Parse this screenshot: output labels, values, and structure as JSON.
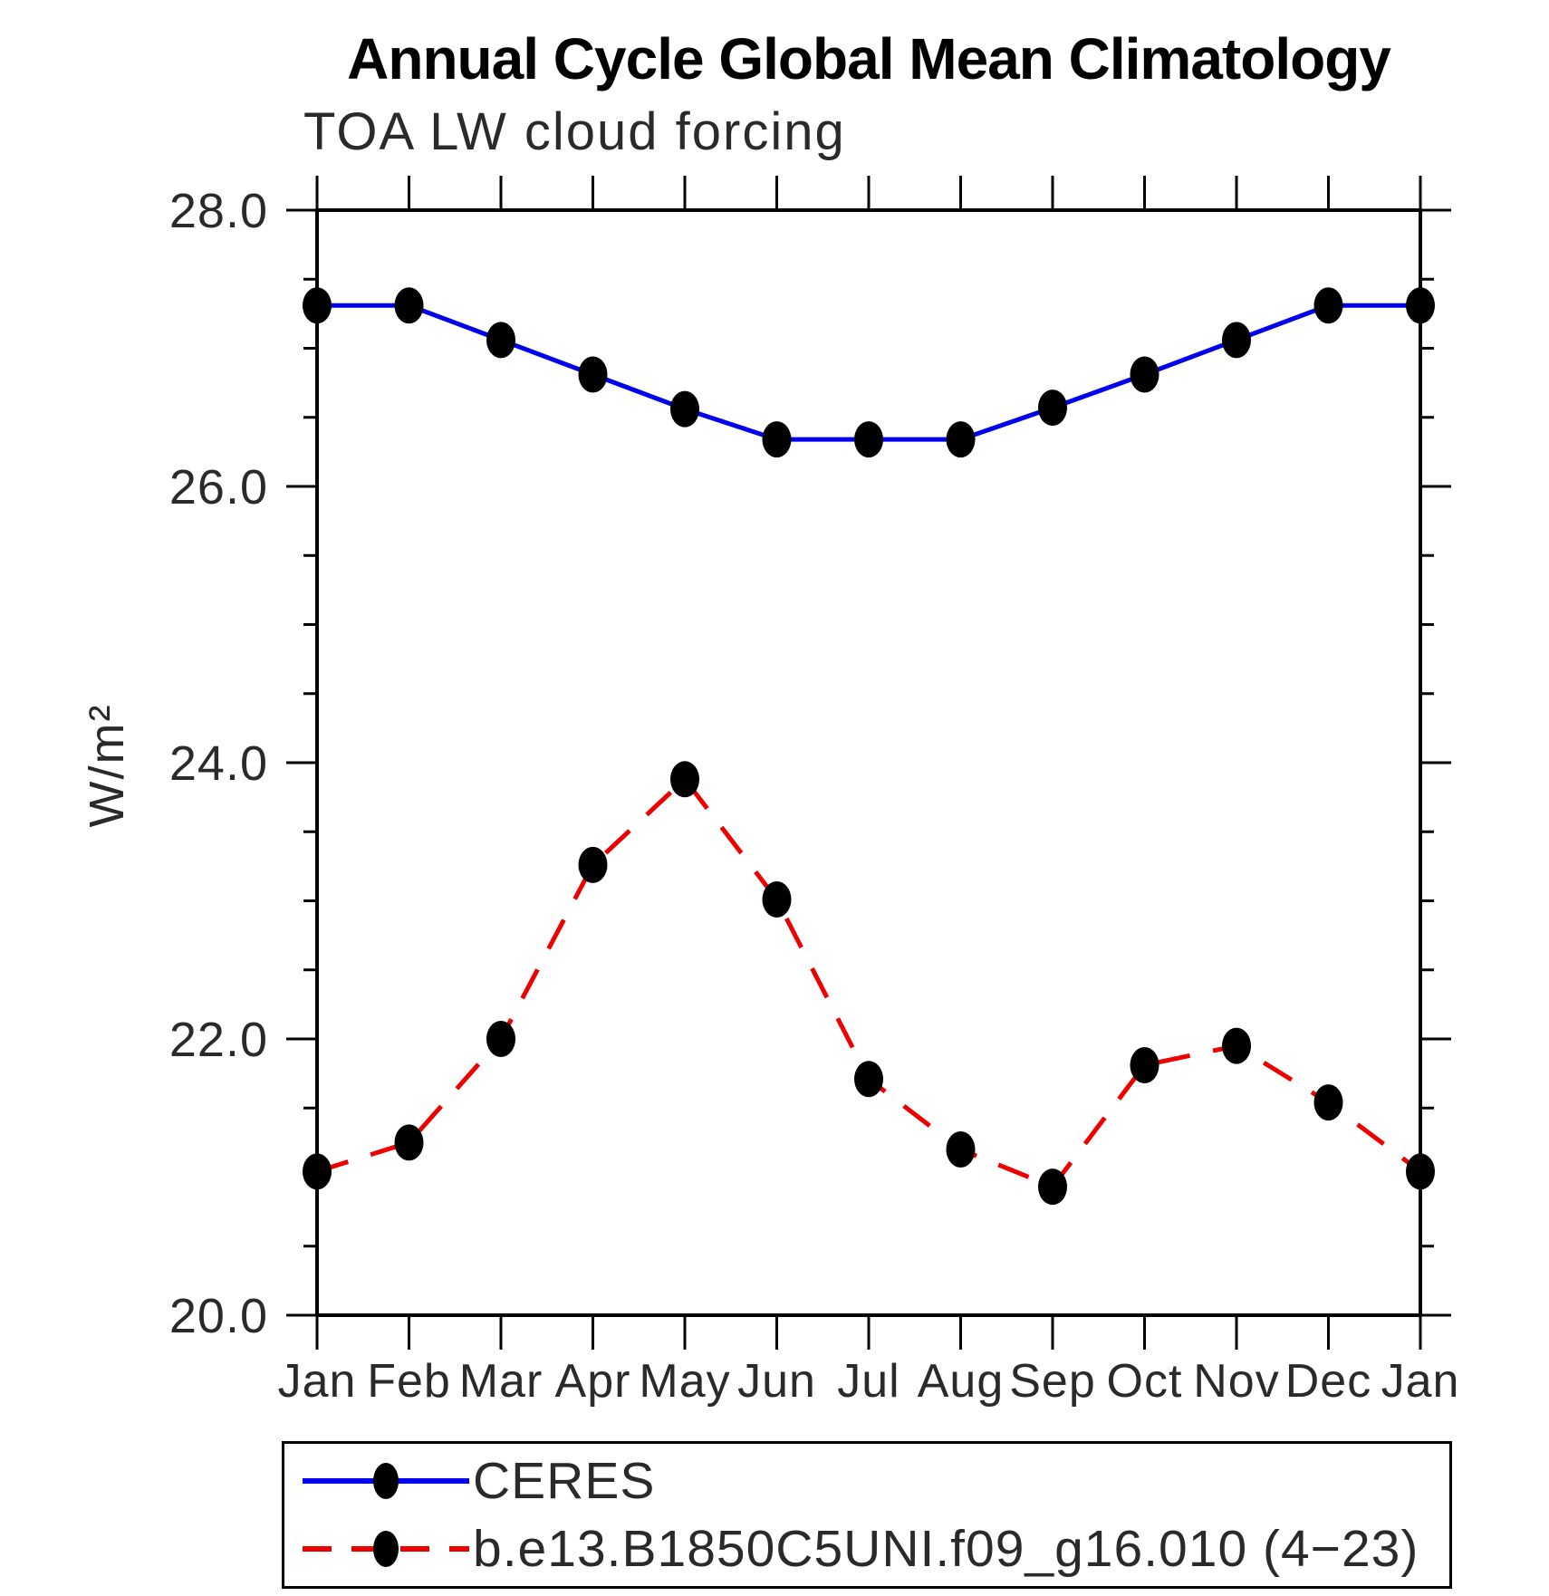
{
  "chart_data": {
    "type": "line",
    "title": "Annual Cycle Global Mean Climatology",
    "subtitle": "TOA LW cloud forcing",
    "ylabel": "W/m²",
    "categories": [
      "Jan",
      "Feb",
      "Mar",
      "Apr",
      "May",
      "Jun",
      "Jul",
      "Aug",
      "Sep",
      "Oct",
      "Nov",
      "Dec",
      "Jan"
    ],
    "series": [
      {
        "name": "CERES",
        "color": "#0000ee",
        "style": "solid",
        "marker": "filled-black-dot",
        "values": [
          27.31,
          27.31,
          27.06,
          26.81,
          26.56,
          26.34,
          26.34,
          26.34,
          26.57,
          26.81,
          27.06,
          27.31,
          27.31
        ]
      },
      {
        "name": "b.e13.B1850C5UNI.f09_g16.010 (4−23)",
        "color": "#ee0000",
        "style": "dashed",
        "marker": "filled-black-dot",
        "values": [
          21.04,
          21.25,
          22.0,
          23.26,
          23.88,
          23.01,
          21.71,
          21.2,
          20.93,
          21.81,
          21.95,
          21.54,
          21.04
        ]
      }
    ],
    "ylim": [
      20.0,
      28.0
    ],
    "yticks": [
      {
        "value": 20.0,
        "label": "20.0"
      },
      {
        "value": 22.0,
        "label": "22.0"
      },
      {
        "value": 24.0,
        "label": "24.0"
      },
      {
        "value": 26.0,
        "label": "26.0"
      },
      {
        "value": 28.0,
        "label": "28.0"
      }
    ],
    "yminor_step": 0.5,
    "grid": false,
    "legend_position": "bottom-box",
    "marker_color": "#000000",
    "axis_color": "#000000",
    "text_color": "#2a2a2a"
  }
}
